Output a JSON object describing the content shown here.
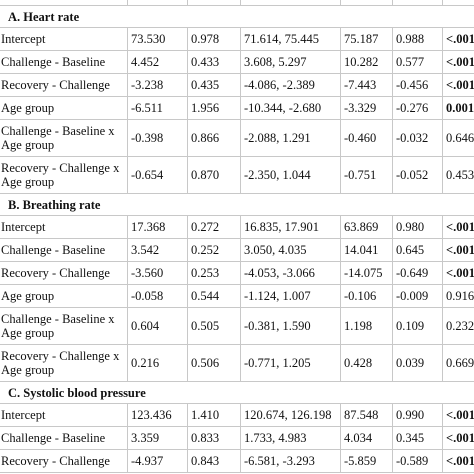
{
  "sections": [
    {
      "title": "A.  Heart rate",
      "rows": [
        {
          "cells": [
            "Intercept",
            "73.530",
            "0.978",
            "71.614, 75.445",
            "75.187",
            "0.988",
            "<.001"
          ],
          "p_bold": true
        },
        {
          "cells": [
            "Challenge - Baseline",
            "4.452",
            "0.433",
            "3.608, 5.297",
            "10.282",
            "0.577",
            "<.001"
          ],
          "p_bold": true
        },
        {
          "cells": [
            "Recovery - Challenge",
            "-3.238",
            "0.435",
            "-4.086, -2.389",
            "-7.443",
            "-0.456",
            "<.001"
          ],
          "p_bold": true
        },
        {
          "cells": [
            "Age group",
            "-6.511",
            "1.956",
            "-10.344, -2.680",
            "-3.329",
            "-0.276",
            "0.001"
          ],
          "p_bold": true
        },
        {
          "cells": [
            "Challenge - Baseline x Age group",
            "-0.398",
            "0.866",
            "-2.088, 1.291",
            "-0.460",
            "-0.032",
            "0.646"
          ],
          "p_bold": false
        },
        {
          "cells": [
            "Recovery - Challenge x Age group",
            "-0.654",
            "0.870",
            "-2.350, 1.044",
            "-0.751",
            "-0.052",
            "0.453"
          ],
          "p_bold": false
        }
      ]
    },
    {
      "title": "B.  Breathing rate",
      "rows": [
        {
          "cells": [
            "Intercept",
            "17.368",
            "0.272",
            "16.835, 17.901",
            "63.869",
            "0.980",
            "<.001"
          ],
          "p_bold": true
        },
        {
          "cells": [
            "Challenge - Baseline",
            "3.542",
            "0.252",
            "3.050, 4.035",
            "14.041",
            "0.645",
            "<.001"
          ],
          "p_bold": true
        },
        {
          "cells": [
            "Recovery - Challenge",
            "-3.560",
            "0.253",
            "-4.053, -3.066",
            "-14.075",
            "-0.649",
            "<.001"
          ],
          "p_bold": true
        },
        {
          "cells": [
            "Age group",
            "-0.058",
            "0.544",
            "-1.124, 1.007",
            "-0.106",
            "-0.009",
            "0.916"
          ],
          "p_bold": false
        },
        {
          "cells": [
            "Challenge - Baseline x Age group",
            "0.604",
            "0.505",
            "-0.381, 1.590",
            "1.198",
            "0.109",
            "0.232"
          ],
          "p_bold": false
        },
        {
          "cells": [
            "Recovery - Challenge x Age group",
            "0.216",
            "0.506",
            "-0.771, 1.205",
            "0.428",
            "0.039",
            "0.669"
          ],
          "p_bold": false
        }
      ]
    },
    {
      "title": "C.  Systolic blood pressure",
      "rows": [
        {
          "cells": [
            "Intercept",
            "123.436",
            "1.410",
            "120.674, 126.198",
            "87.548",
            "0.990",
            "<.001"
          ],
          "p_bold": true
        },
        {
          "cells": [
            "Challenge - Baseline",
            "3.359",
            "0.833",
            "1.733, 4.983",
            "4.034",
            "0.345",
            "<.001"
          ],
          "p_bold": true
        },
        {
          "cells": [
            "Recovery - Challenge",
            "-4.937",
            "0.843",
            "-6.581, -3.293",
            "-5.859",
            "-0.589",
            "<.001"
          ],
          "p_bold": true
        }
      ]
    }
  ]
}
